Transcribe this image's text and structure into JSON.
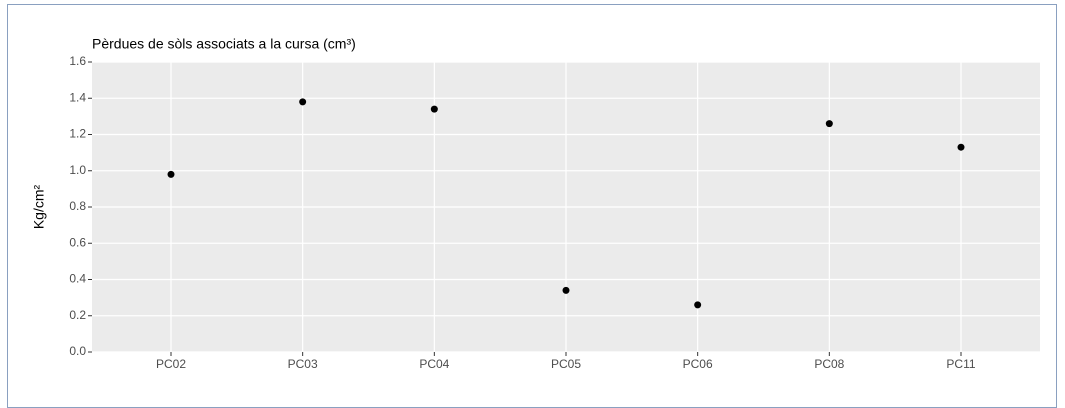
{
  "chart_data": {
    "type": "scatter",
    "title": "Pèrdues de sòls associats a la cursa (cm³)",
    "y_label": "Kg/cm²",
    "categories": [
      "PC02",
      "PC03",
      "PC04",
      "PC05",
      "PC06",
      "PC08",
      "PC11"
    ],
    "values": [
      0.98,
      1.38,
      1.34,
      0.34,
      0.26,
      1.26,
      1.13
    ],
    "color": "#000000",
    "ylim": [
      0,
      1.6
    ],
    "yticks": [
      {
        "value": 0,
        "label": "0.0"
      },
      0.2,
      0.4,
      0.6,
      0.8,
      {
        "value": 1,
        "label": "1.0"
      },
      1.2,
      1.4,
      1.6
    ],
    "grid": true
  }
}
